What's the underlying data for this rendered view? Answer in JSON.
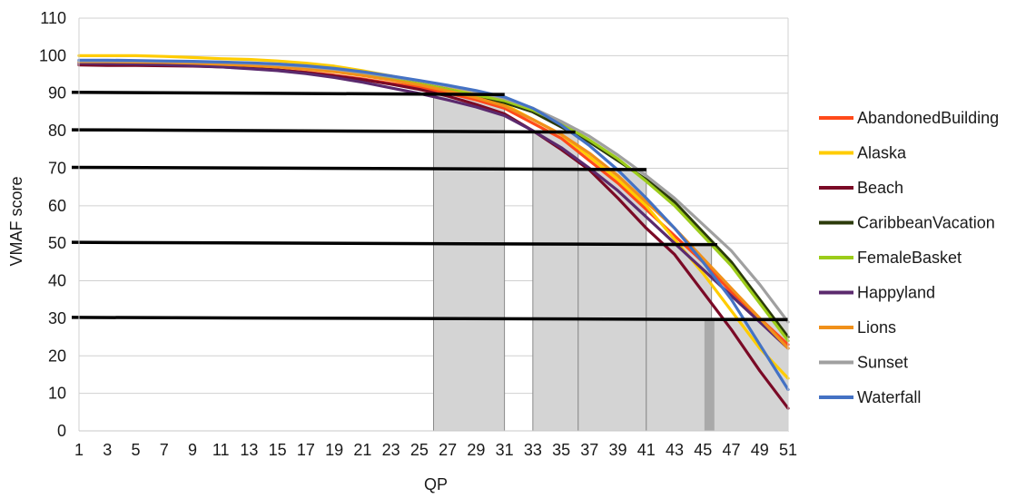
{
  "chart_data": {
    "type": "line",
    "xlabel": "QP",
    "ylabel": "VMAF score",
    "xlim": [
      1,
      51
    ],
    "ylim": [
      0,
      110
    ],
    "ytick_step": 10,
    "xticks": [
      1,
      3,
      5,
      7,
      9,
      11,
      13,
      15,
      17,
      19,
      21,
      23,
      25,
      27,
      29,
      31,
      33,
      35,
      37,
      39,
      41,
      43,
      45,
      47,
      49,
      51
    ],
    "grid": "horizontal",
    "legend_position": "right",
    "x": [
      1,
      3,
      5,
      7,
      9,
      11,
      13,
      15,
      17,
      19,
      21,
      23,
      25,
      27,
      29,
      31,
      33,
      35,
      37,
      39,
      41,
      43,
      45,
      47,
      49,
      51
    ],
    "series": [
      {
        "name": "AbandonedBuilding",
        "color": "#ff4a1a",
        "values": [
          98,
          98,
          97.8,
          97.6,
          97.4,
          97.1,
          96.7,
          96.2,
          95.6,
          94.8,
          93.8,
          92.6,
          91.6,
          90,
          88.2,
          86,
          82,
          78,
          72,
          66,
          59,
          52,
          45,
          37,
          30,
          23
        ]
      },
      {
        "name": "Alaska",
        "color": "#ffcc00",
        "values": [
          100,
          100,
          100,
          99.8,
          99.5,
          99.2,
          99,
          98.6,
          98,
          97.2,
          96,
          94.6,
          93,
          91.5,
          89.5,
          87,
          83,
          79,
          73,
          67,
          60,
          51,
          42,
          32,
          22,
          14
        ]
      },
      {
        "name": "Beach",
        "color": "#7a0a26",
        "values": [
          97.5,
          97.4,
          97.4,
          97.3,
          97.2,
          97,
          96.7,
          96.2,
          95.5,
          94.6,
          93.6,
          92.4,
          91,
          89.2,
          87,
          84.5,
          80,
          75,
          69.5,
          62,
          54,
          47,
          37,
          27,
          16,
          6
        ]
      },
      {
        "name": "CaribbeanVacation",
        "color": "#2b3a0a",
        "values": [
          98.5,
          98.5,
          98.4,
          98.3,
          98.2,
          98,
          97.7,
          97.3,
          96.7,
          96,
          95,
          93.8,
          92.5,
          91,
          89.3,
          87.5,
          85,
          81,
          77,
          72,
          67,
          61,
          53,
          45,
          35,
          25
        ]
      },
      {
        "name": "FemaleBasket",
        "color": "#9ccc1a",
        "values": [
          98.2,
          98.2,
          98.1,
          98,
          97.9,
          97.7,
          97.4,
          97,
          96.5,
          95.8,
          94.9,
          93.7,
          92.5,
          91,
          89.5,
          88,
          85.5,
          82,
          77.5,
          72.5,
          66.5,
          60,
          52,
          44,
          34,
          24
        ]
      },
      {
        "name": "Happyland",
        "color": "#5b2a6e",
        "values": [
          98,
          97.9,
          97.8,
          97.6,
          97.3,
          97,
          96.5,
          96,
          95.2,
          94.2,
          92.9,
          91.4,
          89.9,
          88.2,
          86.3,
          84,
          80,
          75.5,
          70,
          64,
          57,
          50,
          43,
          36,
          29,
          22
        ]
      },
      {
        "name": "Lions",
        "color": "#f0901a",
        "values": [
          98.4,
          98.4,
          98.3,
          98.2,
          98,
          97.7,
          97.4,
          97,
          96.4,
          95.7,
          94.7,
          93.5,
          92.2,
          90.6,
          88.8,
          86.6,
          83,
          79,
          74,
          68,
          61,
          54,
          46,
          38,
          30,
          22
        ]
      },
      {
        "name": "Sunset",
        "color": "#a0a0a0",
        "values": [
          98.6,
          98.6,
          98.6,
          98.5,
          98.4,
          98.2,
          98,
          97.6,
          97.1,
          96.4,
          95.5,
          94.4,
          93.3,
          91.9,
          90.4,
          88.6,
          86,
          82.5,
          78.5,
          73.5,
          68,
          62,
          55,
          48,
          39,
          29
        ]
      },
      {
        "name": "Waterfall",
        "color": "#4472c4",
        "values": [
          98.8,
          98.8,
          98.7,
          98.6,
          98.5,
          98.3,
          98.1,
          97.8,
          97.3,
          96.6,
          95.7,
          94.6,
          93.4,
          92.1,
          90.7,
          89,
          86,
          81.5,
          76,
          69.5,
          62,
          54,
          45,
          35,
          23,
          11
        ]
      }
    ],
    "threshold_lines": [
      {
        "value": 90,
        "end_qp": 31
      },
      {
        "value": 80,
        "end_qp": 36
      },
      {
        "value": 70,
        "end_qp": 41
      },
      {
        "value": 50,
        "end_qp": 46
      },
      {
        "value": 30,
        "end_qp": 51
      }
    ],
    "shaded_qp_ranges": [
      [
        26,
        31
      ],
      [
        33,
        36.2
      ],
      [
        36.2,
        41
      ],
      [
        41,
        45.6
      ],
      [
        45.6,
        51
      ]
    ],
    "shade_color": "#d4d4d4"
  }
}
